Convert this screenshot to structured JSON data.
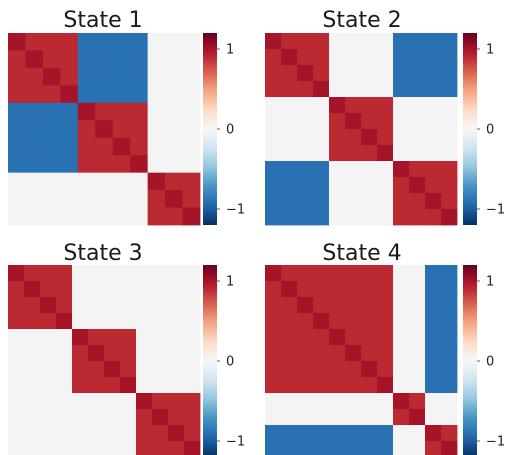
{
  "chart_data": [
    {
      "type": "heatmap",
      "title": "State 1",
      "block_sizes": [
        4,
        4,
        3
      ],
      "block_matrix": [
        [
          0.9,
          -0.9,
          0
        ],
        [
          -0.9,
          0.9,
          0
        ],
        [
          0,
          0,
          0.9
        ]
      ],
      "diagonal": 1,
      "clim": [
        -1.2,
        1.2
      ],
      "colorbar_ticks": [
        {
          "value": 1,
          "label": "1"
        },
        {
          "value": 0,
          "label": "0"
        },
        {
          "value": -1,
          "label": "−1"
        }
      ]
    },
    {
      "type": "heatmap",
      "title": "State 2",
      "block_sizes": [
        4,
        4,
        4
      ],
      "block_matrix": [
        [
          0.9,
          0,
          -0.9
        ],
        [
          0,
          0.9,
          0
        ],
        [
          -0.9,
          0,
          0.9
        ]
      ],
      "diagonal": 1,
      "clim": [
        -1.2,
        1.2
      ],
      "colorbar_ticks": [
        {
          "value": 1,
          "label": "1"
        },
        {
          "value": 0,
          "label": "0"
        },
        {
          "value": -1,
          "label": "−1"
        }
      ]
    },
    {
      "type": "heatmap",
      "title": "State 3",
      "block_sizes": [
        4,
        4,
        4
      ],
      "block_matrix": [
        [
          0.9,
          0,
          0
        ],
        [
          0,
          0.9,
          0
        ],
        [
          0,
          0,
          0.9
        ]
      ],
      "diagonal": 1,
      "clim": [
        -1.2,
        1.2
      ],
      "colorbar_ticks": [
        {
          "value": 1,
          "label": "1"
        },
        {
          "value": 0,
          "label": "0"
        },
        {
          "value": -1,
          "label": "−1"
        }
      ]
    },
    {
      "type": "heatmap",
      "title": "State 4",
      "block_sizes": [
        8,
        2,
        2
      ],
      "block_matrix": [
        [
          0.9,
          0,
          -0.9
        ],
        [
          0,
          0.9,
          0
        ],
        [
          -0.9,
          0,
          0.9
        ]
      ],
      "diagonal": 1,
      "clim": [
        -1.2,
        1.2
      ],
      "colorbar_ticks": [
        {
          "value": 1,
          "label": "1"
        },
        {
          "value": 0,
          "label": "0"
        },
        {
          "value": -1,
          "label": "−1"
        }
      ]
    }
  ],
  "colors": {
    "colormap": "RdBu_r",
    "background": "#ffffff",
    "neutral_cell": "#f4f4f4"
  }
}
